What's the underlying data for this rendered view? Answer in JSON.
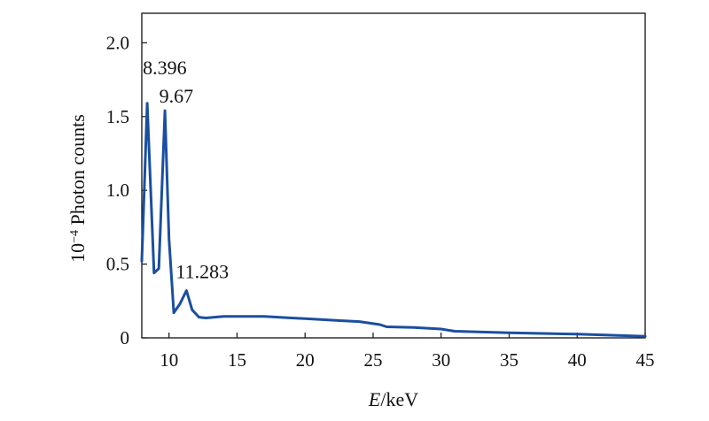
{
  "chart_data": {
    "type": "line",
    "xlabel": {
      "italic": "E",
      "rest": "/keV"
    },
    "ylabel": {
      "prefix": "10",
      "sup": "−4",
      "rest": " Photon counts"
    },
    "xlim": [
      8,
      45
    ],
    "ylim": [
      0,
      2.2
    ],
    "xticks": [
      10,
      15,
      20,
      25,
      30,
      35,
      40,
      45
    ],
    "yticks": [
      0,
      0.5,
      1.0,
      1.5,
      2.0
    ],
    "ytick_labels": [
      "0",
      "0.5",
      "1.0",
      "1.5",
      "2.0"
    ],
    "grid": false,
    "line_color": "#1a4fa0",
    "series": [
      {
        "x": [
          8.0,
          8.4,
          8.9,
          9.25,
          9.7,
          10.0,
          10.35,
          10.8,
          11.28,
          11.7,
          12.2,
          12.7,
          14,
          15,
          16,
          17,
          18,
          19,
          20,
          22,
          24,
          25.5,
          26,
          28,
          30,
          31,
          35,
          40,
          45
        ],
        "y": [
          0.52,
          1.59,
          0.44,
          0.47,
          1.54,
          0.67,
          0.17,
          0.23,
          0.32,
          0.19,
          0.14,
          0.135,
          0.145,
          0.145,
          0.145,
          0.145,
          0.14,
          0.135,
          0.13,
          0.12,
          0.11,
          0.09,
          0.075,
          0.07,
          0.06,
          0.045,
          0.035,
          0.025,
          0.01
        ]
      }
    ],
    "annotations": [
      {
        "text": "8.396",
        "x": 8.396,
        "y": 1.59
      },
      {
        "text": "9.67",
        "x": 9.67,
        "y": 1.54
      },
      {
        "text": "11.283",
        "x": 11.283,
        "y": 0.32
      }
    ]
  }
}
